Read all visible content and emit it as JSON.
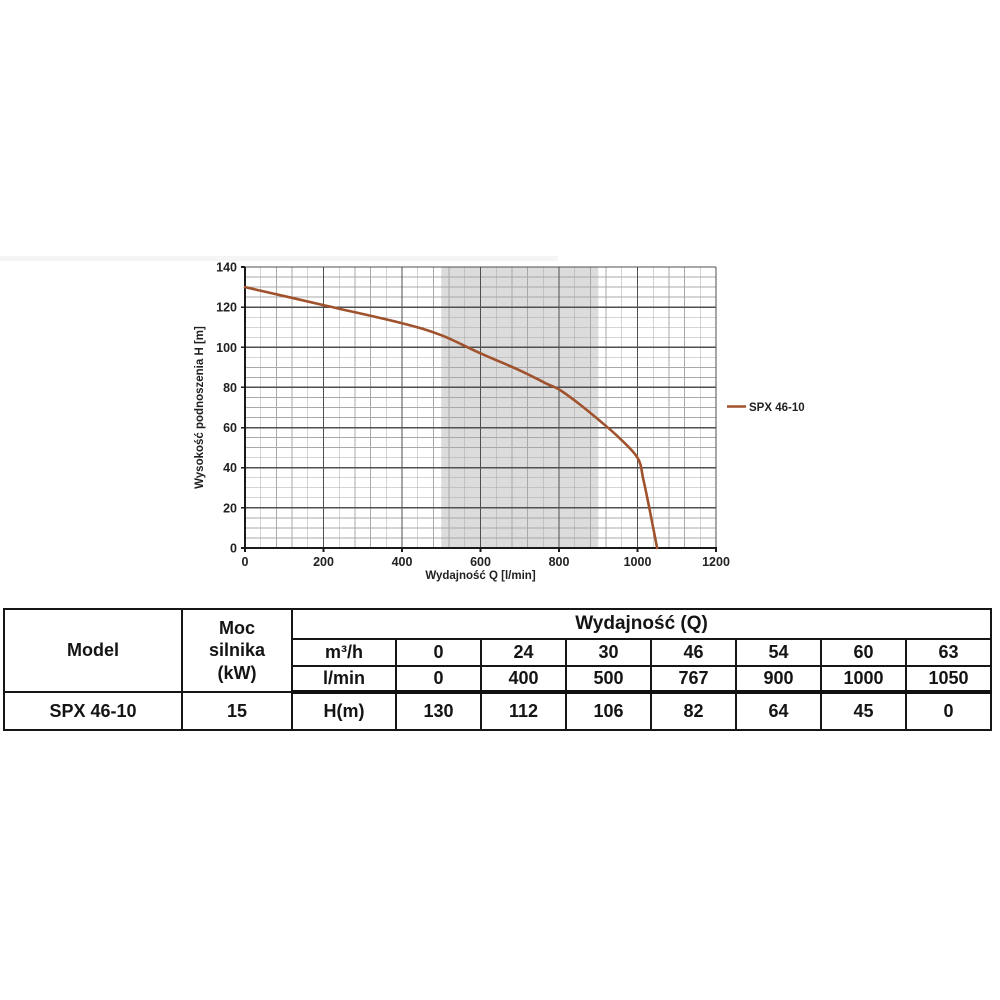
{
  "chart_data": {
    "type": "line",
    "title": "",
    "xlabel": "Wydajność Q [l/min]",
    "ylabel": "Wysokość podnoszenia H [m]",
    "xlim": [
      0,
      1200
    ],
    "ylim": [
      0,
      140
    ],
    "x_ticks": [
      0,
      200,
      400,
      600,
      800,
      1000,
      1200
    ],
    "y_ticks": [
      0,
      20,
      40,
      60,
      80,
      100,
      120,
      140
    ],
    "x_minor_step": 40,
    "y_minor_step": 5,
    "grid": true,
    "legend_position": "right-of-plot",
    "operating_band": {
      "x0": 500,
      "x1": 900,
      "color": "#dcdcdc"
    },
    "series": [
      {
        "name": "SPX 46-10",
        "color": "#a0522d",
        "points": [
          [
            0,
            130
          ],
          [
            400,
            112
          ],
          [
            500,
            106
          ],
          [
            767,
            82
          ],
          [
            900,
            64
          ],
          [
            1000,
            45
          ],
          [
            1050,
            0
          ]
        ],
        "curve_points": [
          [
            0,
            130
          ],
          [
            200,
            121
          ],
          [
            400,
            112
          ],
          [
            500,
            106
          ],
          [
            600,
            97
          ],
          [
            700,
            88.5
          ],
          [
            767,
            82
          ],
          [
            800,
            79
          ],
          [
            850,
            72
          ],
          [
            900,
            64
          ],
          [
            950,
            55.5
          ],
          [
            1000,
            45
          ],
          [
            1015,
            34
          ],
          [
            1030,
            20
          ],
          [
            1042,
            8
          ],
          [
            1050,
            0
          ]
        ]
      }
    ],
    "colors": {
      "axis": "#1a1a1a",
      "major_grid": "#4f4f4f",
      "minor_grid": "#a9a9a9",
      "tick_text": "#212121"
    }
  },
  "table": {
    "model_header": "Model",
    "power_header": "Moc\nsilnika\n(kW)",
    "q_header": "Wydajność (Q)",
    "unit_rows": [
      {
        "label": "m³/h",
        "values": [
          "0",
          "24",
          "30",
          "46",
          "54",
          "60",
          "63"
        ]
      },
      {
        "label": "l/min",
        "values": [
          "0",
          "400",
          "500",
          "767",
          "900",
          "1000",
          "1050"
        ]
      }
    ],
    "data_row": {
      "model": "SPX 46-10",
      "power": "15",
      "label": "H(m)",
      "values": [
        "130",
        "112",
        "106",
        "82",
        "64",
        "45",
        "0"
      ]
    }
  }
}
